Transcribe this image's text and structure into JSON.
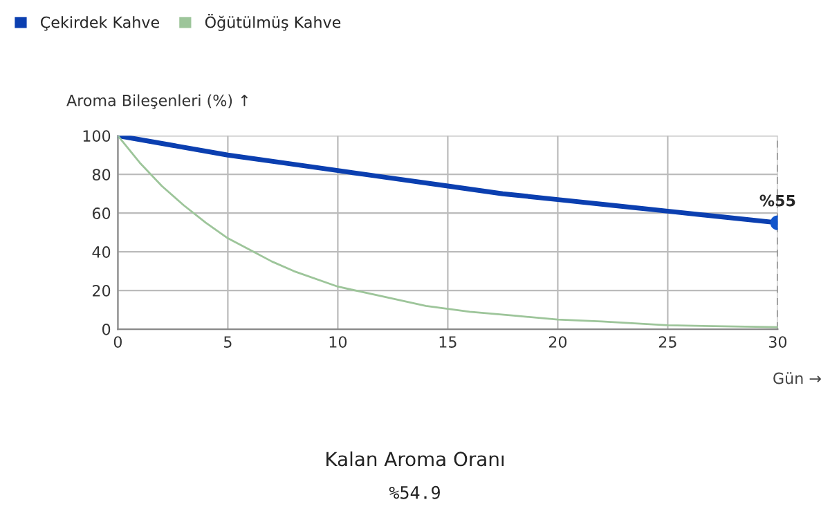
{
  "chart_data": {
    "type": "line",
    "xlabel": "Gün →",
    "ylabel": "Aroma Bileşenleri (%) ↑",
    "series": [
      {
        "name": "Çekirdek Kahve",
        "color": "#0b3fb0",
        "x": [
          0,
          2.5,
          5,
          7.5,
          10,
          12.5,
          15,
          17.5,
          20,
          22.5,
          25,
          27.5,
          30
        ],
        "values": [
          100,
          95,
          90,
          86,
          82,
          78,
          74,
          70,
          67,
          64,
          61,
          58,
          55
        ]
      },
      {
        "name": "Öğütülmüş Kahve",
        "color": "#9dc59a",
        "x": [
          0,
          1,
          2,
          3,
          4,
          5,
          6,
          7,
          8,
          10,
          12,
          14,
          16,
          18,
          20,
          22,
          25,
          30
        ],
        "values": [
          100,
          86,
          74,
          64,
          55,
          47,
          41,
          35,
          30,
          22,
          17,
          12,
          9,
          7,
          5,
          4,
          2,
          1
        ]
      },
      {
        "type": "scatter",
        "color": "#1155cc",
        "x": [
          30
        ],
        "values": [
          55
        ]
      }
    ],
    "xlim": [
      0,
      30
    ],
    "xticks": [
      0,
      5,
      10,
      15,
      20,
      25,
      30
    ],
    "ylim": [
      0,
      100
    ],
    "yticks": [
      0,
      20,
      40,
      60,
      80,
      100
    ],
    "grid": true,
    "legend": "top left",
    "ref_lines": [
      {
        "axis": "x",
        "value": 30,
        "color": "#777777",
        "line_style": "dashed"
      }
    ],
    "annotations": [
      {
        "text": "%55",
        "x": 30,
        "y": 55
      },
      "Kalan Aroma Oranı",
      "%54.9"
    ]
  }
}
